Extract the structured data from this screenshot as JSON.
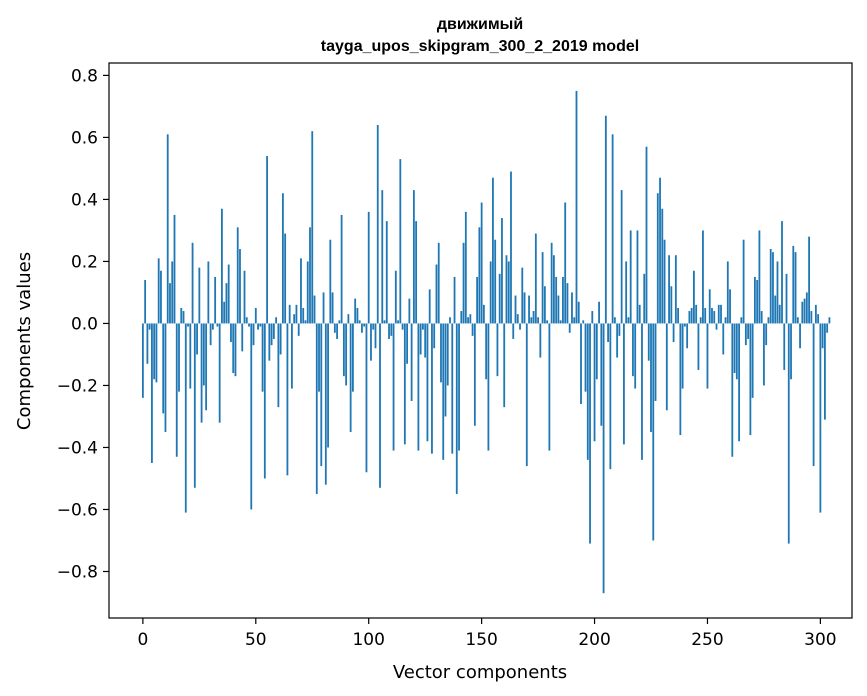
{
  "chart_data": {
    "type": "bar",
    "title": "движимый",
    "subtitle": "tayga_upos_skipgram_300_2_2019 model",
    "xlabel": "Vector components",
    "ylabel": "Components values",
    "xlim": [
      -15,
      314
    ],
    "ylim": [
      -0.95,
      0.84
    ],
    "xticks": [
      0,
      50,
      100,
      150,
      200,
      250,
      300
    ],
    "yticks": [
      -0.8,
      -0.6,
      -0.4,
      -0.2,
      0.0,
      0.2,
      0.4,
      0.6,
      0.8
    ],
    "ytick_labels": [
      "−0.8",
      "−0.6",
      "−0.4",
      "−0.2",
      "0.0",
      "0.2",
      "0.4",
      "0.6",
      "0.8"
    ],
    "bar_color": "#1f77b4",
    "values": [
      -0.24,
      0.14,
      -0.13,
      -0.02,
      -0.45,
      -0.18,
      -0.19,
      0.21,
      0.17,
      -0.29,
      -0.35,
      0.61,
      0.13,
      0.2,
      0.35,
      -0.43,
      -0.22,
      0.05,
      0.04,
      -0.61,
      -0.01,
      -0.21,
      0.26,
      -0.53,
      -0.1,
      0.18,
      -0.32,
      -0.2,
      -0.28,
      0.2,
      -0.07,
      -0.02,
      0.15,
      -0.01,
      -0.32,
      0.37,
      0.07,
      0.13,
      0.19,
      -0.06,
      -0.16,
      -0.17,
      0.31,
      0.24,
      -0.09,
      0.17,
      0.02,
      -0.01,
      -0.6,
      -0.07,
      0.05,
      -0.02,
      -0.01,
      -0.22,
      -0.5,
      0.54,
      -0.12,
      -0.07,
      -0.05,
      0.02,
      -0.27,
      -0.1,
      0.42,
      0.29,
      -0.49,
      0.06,
      -0.21,
      0.03,
      0.06,
      -0.04,
      0.21,
      0.05,
      0.01,
      0.2,
      0.31,
      0.62,
      0.09,
      -0.55,
      -0.22,
      -0.46,
      0.1,
      -0.52,
      -0.4,
      0.27,
      0.1,
      -0.03,
      -0.05,
      0.01,
      0.35,
      -0.17,
      -0.2,
      0.03,
      -0.35,
      -0.22,
      0.08,
      0.05,
      0.01,
      -0.03,
      -0.01,
      -0.48,
      0.36,
      -0.12,
      -0.02,
      -0.08,
      0.64,
      -0.53,
      0.43,
      0.01,
      0.33,
      -0.05,
      -0.04,
      -0.41,
      0.17,
      0.01,
      0.53,
      -0.02,
      -0.39,
      -0.13,
      0.08,
      -0.25,
      0.43,
      0.33,
      -0.41,
      -0.1,
      -0.02,
      -0.11,
      -0.38,
      0.11,
      -0.42,
      -0.08,
      0.19,
      0.26,
      -0.19,
      -0.44,
      -0.3,
      -0.2,
      0.02,
      -0.42,
      0.15,
      -0.55,
      -0.41,
      0.04,
      0.26,
      0.36,
      0.02,
      0.03,
      -0.04,
      -0.33,
      0.15,
      0.31,
      0.39,
      0.06,
      -0.18,
      -0.41,
      0.2,
      0.47,
      0.27,
      -0.17,
      0.16,
      0.34,
      -0.27,
      0.22,
      0.2,
      0.49,
      -0.05,
      0.09,
      0.03,
      -0.02,
      0.18,
      0.1,
      -0.46,
      0.09,
      0.02,
      0.04,
      0.29,
      0.02,
      -0.11,
      0.23,
      0.12,
      0.01,
      -0.41,
      0.26,
      0.22,
      0.15,
      0.09,
      0.01,
      0.15,
      0.39,
      0.13,
      -0.03,
      0.1,
      0.02,
      0.75,
      0.07,
      -0.26,
      0.01,
      -0.22,
      -0.44,
      -0.71,
      0.04,
      -0.38,
      -0.18,
      0.07,
      -0.33,
      -0.87,
      0.67,
      -0.06,
      -0.47,
      0.61,
      0.02,
      -0.11,
      -0.04,
      0.43,
      -0.39,
      0.2,
      0.02,
      0.3,
      -0.17,
      -0.21,
      0.3,
      0.06,
      -0.44,
      0.16,
      0.57,
      -0.12,
      -0.35,
      -0.7,
      -0.25,
      0.42,
      0.47,
      0.37,
      0.27,
      -0.28,
      0.22,
      0.12,
      -0.06,
      0.22,
      0.05,
      -0.36,
      -0.21,
      -0.01,
      -0.08,
      0.04,
      0.05,
      0.17,
      0.06,
      -0.15,
      0.02,
      0.3,
      0.05,
      -0.21,
      0.11,
      0.05,
      0.04,
      -0.02,
      0.06,
      0.06,
      -0.1,
      0.02,
      0.2,
      0.11,
      -0.43,
      -0.16,
      -0.18,
      -0.38,
      0.02,
      0.27,
      -0.07,
      -0.05,
      -0.36,
      -0.24,
      0.15,
      0.14,
      0.3,
      0.04,
      -0.2,
      -0.07,
      0.02,
      0.24,
      0.23,
      0.09,
      0.2,
      0.06,
      0.33,
      -0.15,
      0.16,
      -0.71,
      -0.18,
      0.25,
      0.23,
      0.02,
      -0.08,
      0.07,
      0.08,
      0.1,
      0.28,
      0.04,
      -0.46,
      0.06,
      0.03,
      -0.61,
      -0.08,
      -0.31,
      -0.03,
      0.02
    ]
  }
}
